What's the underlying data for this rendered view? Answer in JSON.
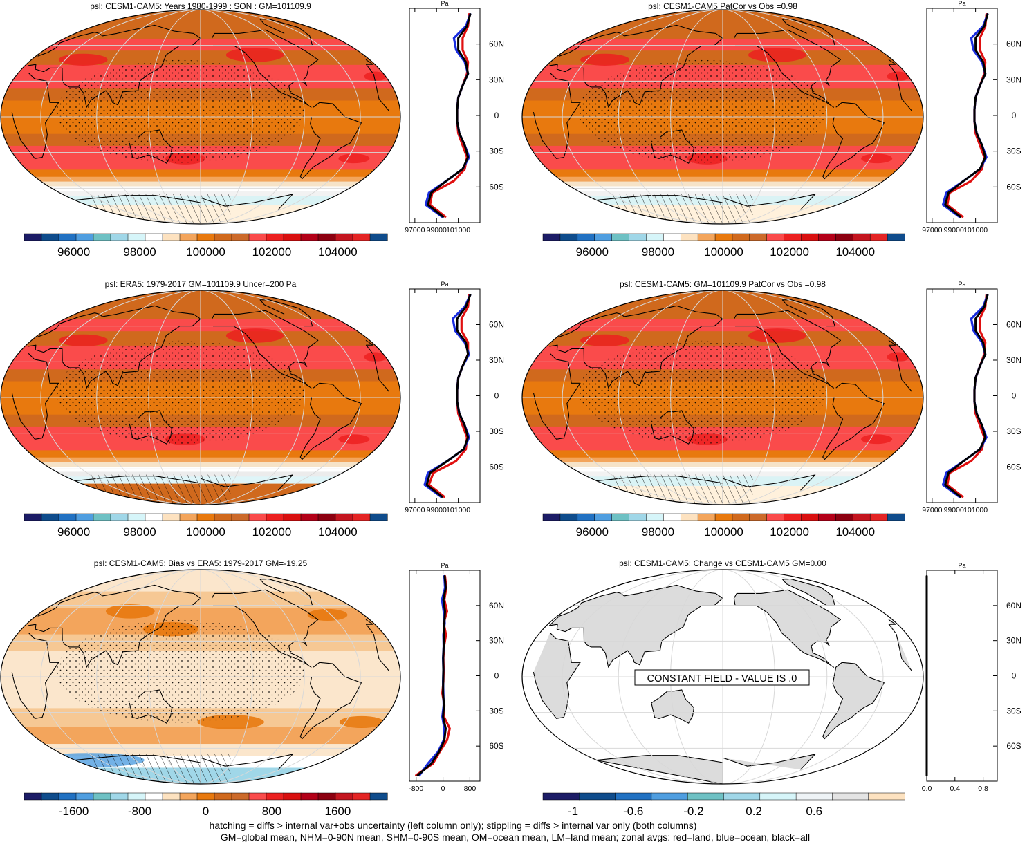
{
  "figure": {
    "footer_lines": [
      "hatching = diffs > internal var+obs uncertainty (left column only); stippling = diffs > internal var only (both columns)",
      "GM=global mean, NHM=0-90N mean, SHM=0-90S mean, OM=ocean mean, LM=land mean; zonal avgs: red=land, blue=ocean, black=all"
    ]
  },
  "chart_data": [
    {
      "type": "heatmap",
      "panel": "model-climatology",
      "title": "psl: CESM1-CAM5: Years 1980-1999 : SON : GM=101109.9",
      "colorbar_ticks": [
        "96000",
        "98000",
        "100000",
        "102000",
        "104000"
      ],
      "colorbar_range": [
        94500,
        105500
      ],
      "lat_labels": [
        "60N",
        "30N",
        "0",
        "30S",
        "60S"
      ],
      "zonal_profile": {
        "unit_label": "Pa",
        "x_ticks": [
          "97000",
          "99000",
          "101000"
        ],
        "xlim": [
          96500,
          103000
        ],
        "lat": [
          85,
          75,
          65,
          55,
          45,
          35,
          25,
          15,
          5,
          -5,
          -15,
          -25,
          -35,
          -45,
          -55,
          -65,
          -75,
          -85
        ],
        "series": [
          {
            "name": "land",
            "color": "#e01010",
            "values": [
              102000,
              101900,
              101400,
              101400,
              101900,
              101800,
              101400,
              101000,
              100900,
              100900,
              101000,
              101400,
              101800,
              101600,
              100600,
              98600,
              98400,
              99800
            ]
          },
          {
            "name": "ocean",
            "color": "#1a2de0",
            "values": [
              102100,
              101700,
              100600,
              100800,
              101600,
              101900,
              101400,
              101000,
              100900,
              100900,
              101100,
              101600,
              102000,
              101400,
              99900,
              98300,
              98000,
              99500
            ]
          },
          {
            "name": "all",
            "color": "#000000",
            "values": [
              102100,
              101800,
              101000,
              101000,
              101700,
              101900,
              101400,
              101000,
              100900,
              100900,
              101100,
              101600,
              101900,
              101400,
              99900,
              98500,
              98200,
              99600
            ]
          }
        ]
      }
    },
    {
      "type": "heatmap",
      "panel": "model-climatology-patcor",
      "title": "psl: CESM1-CAM5 PatCor vs Obs =0.98",
      "colorbar_ticks": [
        "96000",
        "98000",
        "100000",
        "102000",
        "104000"
      ],
      "colorbar_range": [
        94500,
        105500
      ],
      "lat_labels": [
        "60N",
        "30N",
        "0",
        "30S",
        "60S"
      ],
      "zonal_profile": {
        "unit_label": "Pa",
        "x_ticks": [
          "97000",
          "99000",
          "101000"
        ],
        "xlim": [
          96500,
          103000
        ],
        "lat": [
          85,
          75,
          65,
          55,
          45,
          35,
          25,
          15,
          5,
          -5,
          -15,
          -25,
          -35,
          -45,
          -55,
          -65,
          -75,
          -85
        ],
        "series": [
          {
            "name": "land",
            "color": "#e01010",
            "values": [
              102000,
              101900,
              101400,
              101400,
              101900,
              101800,
              101400,
              101000,
              100900,
              100900,
              101000,
              101400,
              101800,
              101600,
              100600,
              98600,
              98400,
              99800
            ]
          },
          {
            "name": "ocean",
            "color": "#1a2de0",
            "values": [
              102100,
              101700,
              100600,
              100800,
              101600,
              101900,
              101400,
              101000,
              100900,
              100900,
              101100,
              101600,
              102000,
              101400,
              99900,
              98300,
              98000,
              99500
            ]
          },
          {
            "name": "all",
            "color": "#000000",
            "values": [
              102100,
              101800,
              101000,
              101000,
              101700,
              101900,
              101400,
              101000,
              100900,
              100900,
              101100,
              101600,
              101900,
              101400,
              99900,
              98500,
              98200,
              99600
            ]
          }
        ]
      }
    },
    {
      "type": "heatmap",
      "panel": "observations",
      "title": "psl: ERA5: 1979-2017 GM=101109.9 Uncer=200 Pa",
      "colorbar_ticks": [
        "96000",
        "98000",
        "100000",
        "102000",
        "104000"
      ],
      "colorbar_range": [
        94500,
        105500
      ],
      "lat_labels": [
        "60N",
        "30N",
        "0",
        "30S",
        "60S"
      ],
      "zonal_profile": {
        "unit_label": "Pa",
        "x_ticks": [
          "97000",
          "99000",
          "101000"
        ],
        "xlim": [
          96500,
          103000
        ],
        "lat": [
          85,
          75,
          65,
          55,
          45,
          35,
          25,
          15,
          5,
          -5,
          -15,
          -25,
          -35,
          -45,
          -55,
          -65,
          -75,
          -85
        ],
        "series": [
          {
            "name": "land",
            "color": "#e01010",
            "values": [
              102000,
              101900,
              101300,
              101300,
              101900,
              101900,
              101400,
              101000,
              100900,
              100900,
              101000,
              101400,
              101800,
              101700,
              100800,
              98700,
              98300,
              99700
            ]
          },
          {
            "name": "ocean",
            "color": "#1a2de0",
            "values": [
              102100,
              101600,
              100500,
              100700,
              101600,
              102000,
              101400,
              101000,
              100900,
              100900,
              101100,
              101600,
              102000,
              101500,
              100000,
              98200,
              97900,
              99400
            ]
          },
          {
            "name": "all",
            "color": "#000000",
            "values": [
              102100,
              101700,
              100900,
              100900,
              101700,
              101900,
              101400,
              101000,
              100900,
              100900,
              101100,
              101600,
              101900,
              101500,
              100000,
              98400,
              98100,
              99500
            ]
          }
        ]
      }
    },
    {
      "type": "heatmap",
      "panel": "model-climatology-2",
      "title": "psl: CESM1-CAM5: GM=101109.9 PatCor vs Obs =0.98",
      "colorbar_ticks": [
        "96000",
        "98000",
        "100000",
        "102000",
        "104000"
      ],
      "colorbar_range": [
        94500,
        105500
      ],
      "lat_labels": [
        "60N",
        "30N",
        "0",
        "30S",
        "60S"
      ],
      "zonal_profile": {
        "unit_label": "Pa",
        "x_ticks": [
          "97000",
          "99000",
          "101000"
        ],
        "xlim": [
          96500,
          103000
        ],
        "lat": [
          85,
          75,
          65,
          55,
          45,
          35,
          25,
          15,
          5,
          -5,
          -15,
          -25,
          -35,
          -45,
          -55,
          -65,
          -75,
          -85
        ],
        "series": [
          {
            "name": "land",
            "color": "#e01010",
            "values": [
              102000,
              101900,
              101400,
              101400,
              101900,
              101800,
              101400,
              101000,
              100900,
              100900,
              101000,
              101400,
              101800,
              101600,
              100600,
              98600,
              98400,
              99800
            ]
          },
          {
            "name": "ocean",
            "color": "#1a2de0",
            "values": [
              102100,
              101700,
              100600,
              100800,
              101600,
              101900,
              101400,
              101000,
              100900,
              100900,
              101100,
              101600,
              102000,
              101400,
              99900,
              98300,
              98000,
              99500
            ]
          },
          {
            "name": "all",
            "color": "#000000",
            "values": [
              102100,
              101800,
              101000,
              101000,
              101700,
              101900,
              101400,
              101000,
              100900,
              100900,
              101100,
              101600,
              101900,
              101400,
              99900,
              98500,
              98200,
              99600
            ]
          }
        ]
      }
    },
    {
      "type": "heatmap",
      "panel": "bias",
      "title": "psl: CESM1-CAM5: Bias vs ERA5: 1979-2017  GM=-19.25",
      "colorbar_ticks": [
        "-1600",
        "-800",
        "0",
        "800",
        "1600"
      ],
      "colorbar_range": [
        -2200,
        2200
      ],
      "lat_labels": [
        "60N",
        "30N",
        "0",
        "30S",
        "60S"
      ],
      "zonal_profile": {
        "unit_label": "Pa",
        "x_ticks": [
          "-800",
          "0",
          "800"
        ],
        "xlim": [
          -1000,
          1100
        ],
        "lat": [
          85,
          75,
          65,
          55,
          45,
          35,
          25,
          15,
          5,
          -5,
          -15,
          -25,
          -35,
          -45,
          -55,
          -65,
          -75,
          -85
        ],
        "series": [
          {
            "name": "land",
            "color": "#e01010",
            "values": [
              60,
              100,
              40,
              120,
              20,
              90,
              30,
              10,
              20,
              10,
              -20,
              40,
              30,
              200,
              120,
              -100,
              -300,
              -800
            ]
          },
          {
            "name": "ocean",
            "color": "#1a2de0",
            "values": [
              40,
              60,
              -30,
              20,
              50,
              10,
              20,
              0,
              10,
              0,
              10,
              20,
              -20,
              40,
              20,
              -150,
              -450,
              -700
            ]
          },
          {
            "name": "all",
            "color": "#000000",
            "values": [
              50,
              80,
              10,
              60,
              40,
              40,
              20,
              5,
              10,
              5,
              0,
              30,
              0,
              80,
              40,
              -120,
              -350,
              -750
            ]
          }
        ]
      }
    },
    {
      "type": "heatmap",
      "panel": "change",
      "title": "psl: CESM1-CAM5: Change vs CESM1-CAM5 GM=0.00",
      "annotation": "CONSTANT FIELD - VALUE IS .0",
      "colorbar_ticks": [
        "-1",
        "-0.6",
        "-0.2",
        "0.2",
        "0.6"
      ],
      "colorbar_range": [
        -1.2,
        1.2
      ],
      "lat_labels": [
        "60N",
        "30N",
        "0",
        "30S",
        "60S"
      ],
      "zonal_profile": {
        "unit_label": "Pa",
        "x_ticks": [
          "0.0",
          "0.4",
          "0.8"
        ],
        "xlim": [
          0,
          1
        ],
        "lat": [
          85,
          -85
        ],
        "series": [
          {
            "name": "all",
            "color": "#000000",
            "values": [
              0,
              0
            ]
          }
        ]
      }
    }
  ]
}
